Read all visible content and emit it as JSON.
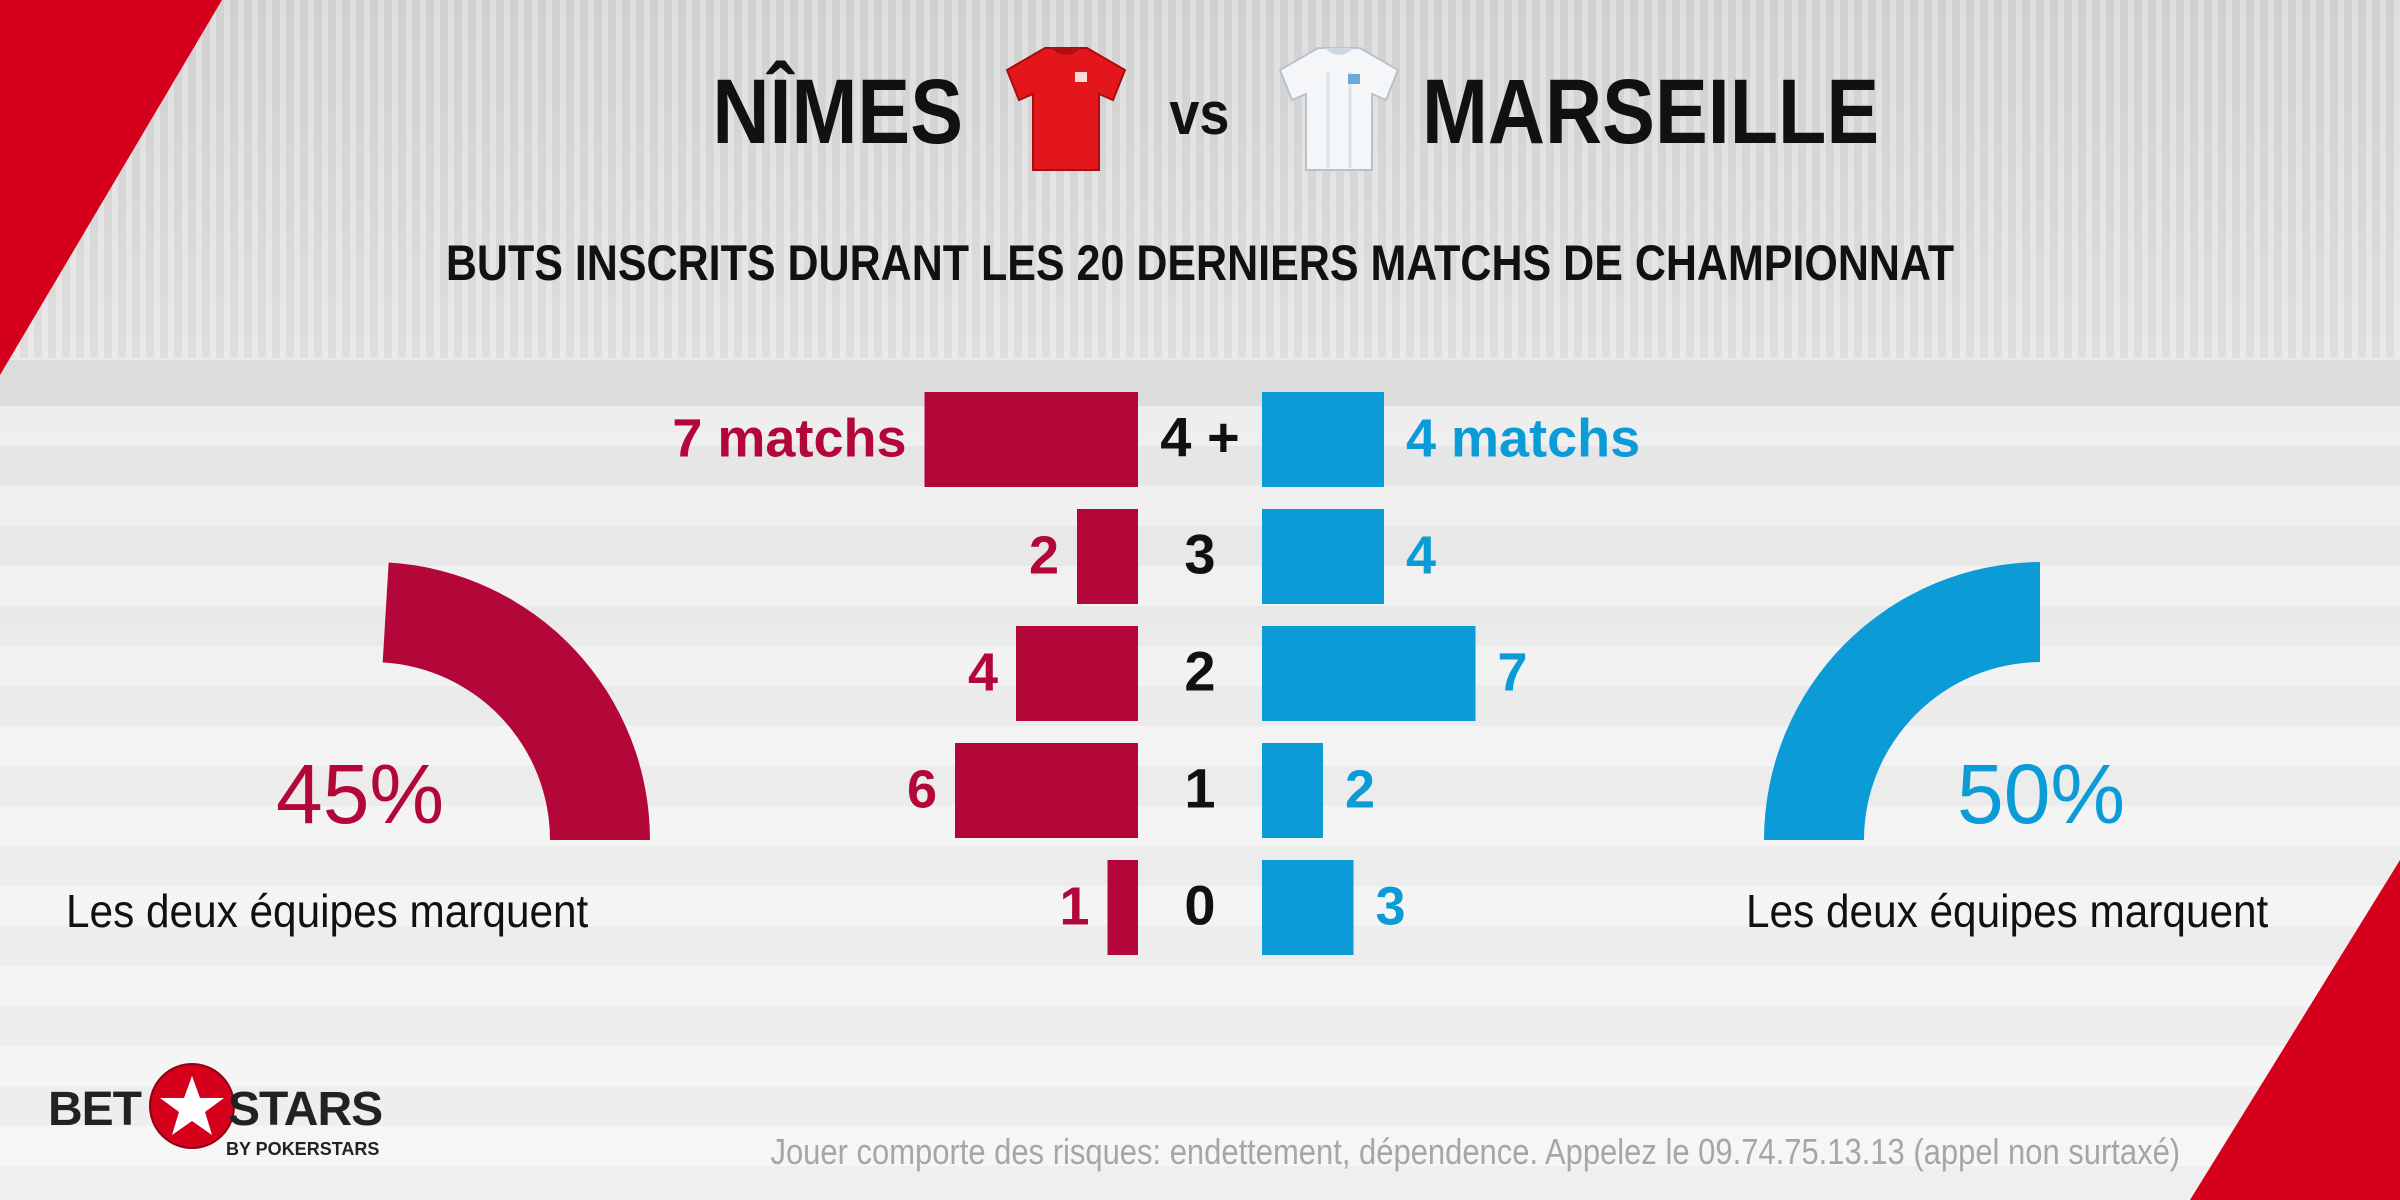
{
  "title": {
    "home_team": "NÎMES",
    "vs": "vs",
    "away_team": "MARSEILLE"
  },
  "subtitle": "BUTS INSCRITS DURANT LES 20 DERNIERS MATCHS DE CHAMPIONNAT",
  "colors": {
    "home": "#b3073a",
    "away": "#0b9bd6",
    "accent_red": "#d5001c",
    "text": "#111111"
  },
  "home_stat": {
    "value": 45,
    "label": "45%",
    "caption": "Les deux équipes marquent"
  },
  "away_stat": {
    "value": 50,
    "label": "50%",
    "caption": "Les deux équipes marquent"
  },
  "chart_data": {
    "type": "bar",
    "orientation": "horizontal-butterfly",
    "categories": [
      "4 +",
      "3",
      "2",
      "1",
      "0"
    ],
    "series": [
      {
        "name": "NÎMES",
        "values": [
          7,
          2,
          4,
          6,
          1
        ],
        "labels": [
          "7 matchs",
          "2",
          "4",
          "6",
          "1"
        ]
      },
      {
        "name": "MARSEILLE",
        "values": [
          4,
          4,
          7,
          2,
          3
        ],
        "labels": [
          "4 matchs",
          "4",
          "7",
          "2",
          "3"
        ]
      }
    ],
    "title": "BUTS INSCRITS DURANT LES 20 DERNIERS MATCHS DE CHAMPIONNAT",
    "xlabel": "",
    "ylabel": "",
    "xlim": [
      0,
      7
    ],
    "grid": false,
    "legend": "none"
  },
  "logo": {
    "left": "BET",
    "right": "STARS",
    "sub": "BY POKERSTARS"
  },
  "disclaimer": "Jouer comporte des risques: endettement, dépendence. Appelez le 09.74.75.13.13 (appel non surtaxé)"
}
